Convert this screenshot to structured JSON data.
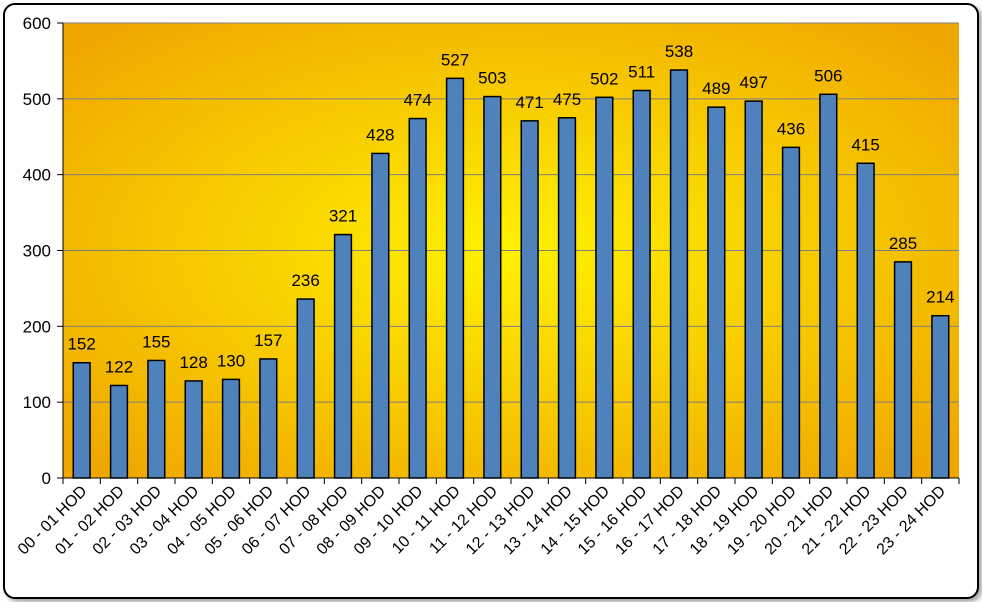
{
  "chart_data": {
    "type": "bar",
    "categories": [
      "00 - 01 HOD",
      "01 - 02 HOD",
      "02 - 03 HOD",
      "03 - 04 HOD",
      "04 - 05 HOD",
      "05 - 06 HOD",
      "06 - 07 HOD",
      "07 - 08 HOD",
      "08 - 09 HOD",
      "09 - 10 HOD",
      "10 - 11 HOD",
      "11 - 12 HOD",
      "12 - 13 HOD",
      "13 - 14 HOD",
      "14 - 15 HOD",
      "15 - 16 HOD",
      "16 - 17 HOD",
      "17 - 18 HOD",
      "18 - 19 HOD",
      "19 - 20 HOD",
      "20 - 21 HOD",
      "21 - 22 HOD",
      "22 - 23 HOD",
      "23 - 24 HOD"
    ],
    "values": [
      152,
      122,
      155,
      128,
      130,
      157,
      236,
      321,
      428,
      474,
      527,
      503,
      471,
      475,
      502,
      511,
      538,
      489,
      497,
      436,
      506,
      415,
      285,
      214
    ],
    "title": "",
    "xlabel": "",
    "ylabel": "",
    "ylim": [
      0,
      600
    ],
    "yticks": [
      "0",
      "100",
      "200",
      "300",
      "400",
      "500",
      "600"
    ],
    "grid": true,
    "legend": "none",
    "colors": {
      "bar_fill": "#4F81BD",
      "bar_stroke": "#000000",
      "plot_center": "#FFF200",
      "plot_edge": "#F0A800"
    }
  }
}
